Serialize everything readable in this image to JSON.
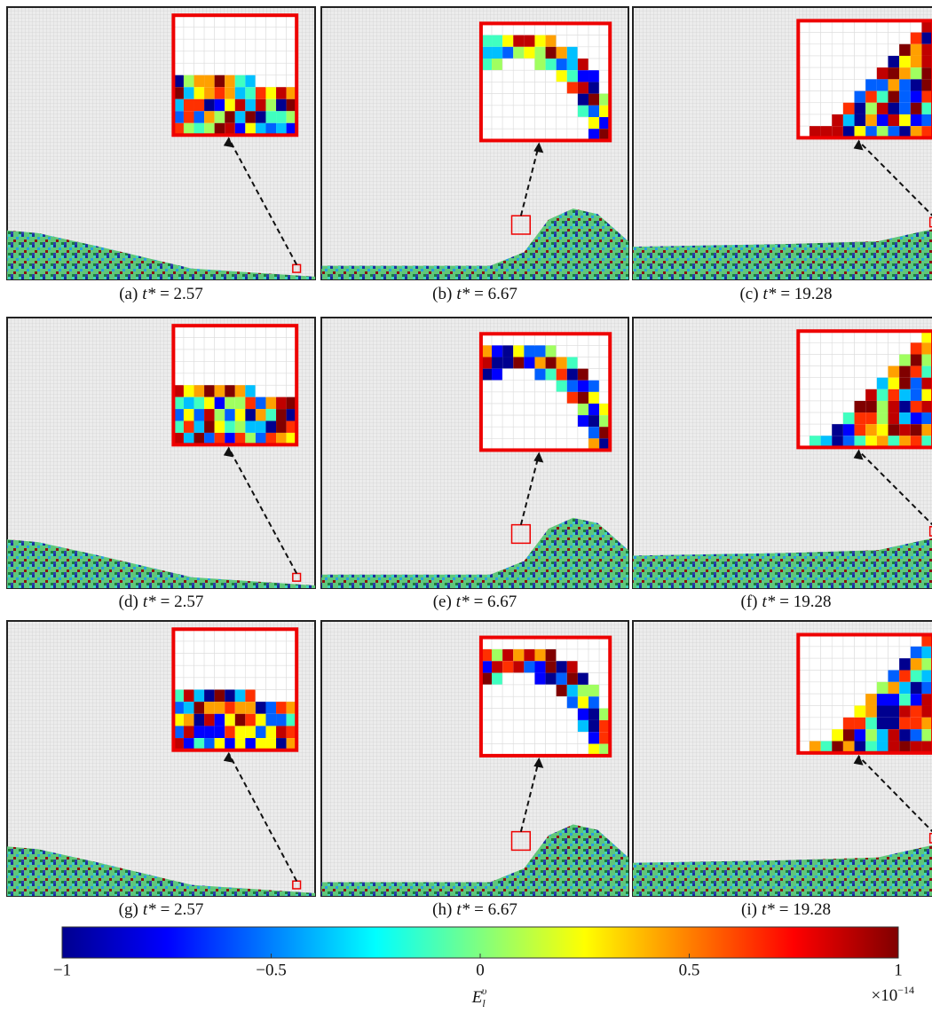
{
  "panels": [
    {
      "label": "(a)",
      "symbol": "t*",
      "rest": "= 2.57"
    },
    {
      "label": "(b)",
      "symbol": "t*",
      "rest": "= 6.67"
    },
    {
      "label": "(c)",
      "symbol": "t*",
      "rest": "= 19.28"
    },
    {
      "label": "(d)",
      "symbol": "t*",
      "rest": "= 2.57"
    },
    {
      "label": "(e)",
      "symbol": "t*",
      "rest": "= 6.67"
    },
    {
      "label": "(f)",
      "symbol": "t*",
      "rest": "= 19.28"
    },
    {
      "label": "(g)",
      "symbol": "t*",
      "rest": "= 2.57"
    },
    {
      "label": "(h)",
      "symbol": "t*",
      "rest": "= 6.67"
    },
    {
      "label": "(i)",
      "symbol": "t*",
      "rest": "= 19.28"
    }
  ],
  "colorbar": {
    "range": [
      -1,
      1
    ],
    "ticks": [
      {
        "value": -1,
        "label": "−1"
      },
      {
        "value": -0.5,
        "label": "−0.5"
      },
      0,
      0.5,
      1
    ],
    "label": {
      "base": "E",
      "sub": "l",
      "sup": "υ"
    },
    "scale": {
      "base": "×10",
      "exponent": "−14"
    }
  }
}
